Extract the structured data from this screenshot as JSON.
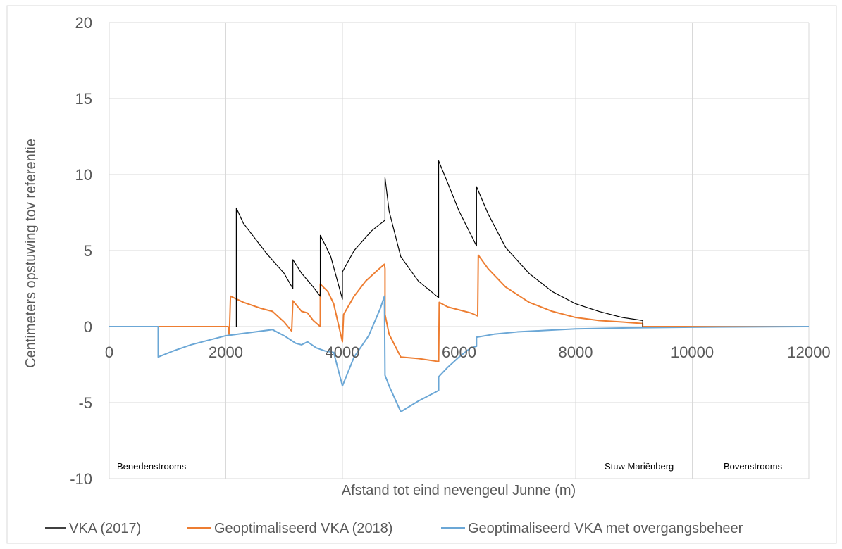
{
  "chart_data": {
    "type": "line",
    "xlabel": "Afstand tot eind nevengeul Junne (m)",
    "ylabel": "Centimeters opstuwing tov referentie",
    "xlim": [
      0,
      12000
    ],
    "ylim": [
      -10,
      20
    ],
    "x_ticks": [
      "0",
      "2000",
      "4000",
      "6000",
      "8000",
      "10000",
      "12000"
    ],
    "y_ticks": [
      "-10",
      "-5",
      "0",
      "5",
      "10",
      "15",
      "20"
    ],
    "grid": "vertical-and-horizontal",
    "legend_position": "bottom",
    "annotations": {
      "benedenstrooms": "Benedenstrooms",
      "stuw": "Stuw Mariënberg",
      "bovenstrooms": "Bovenstrooms"
    },
    "series": [
      {
        "name": "VKA (2017)",
        "color": "#000000",
        "points": [
          [
            2180,
            0
          ],
          [
            2180,
            7.8
          ],
          [
            2300,
            6.8
          ],
          [
            2500,
            5.8
          ],
          [
            2700,
            4.8
          ],
          [
            3000,
            3.5
          ],
          [
            3150,
            2.5
          ],
          [
            3150,
            4.4
          ],
          [
            3300,
            3.5
          ],
          [
            3500,
            2.6
          ],
          [
            3620,
            2.0
          ],
          [
            3620,
            6.0
          ],
          [
            3700,
            5.4
          ],
          [
            3800,
            4.6
          ],
          [
            4000,
            1.8
          ],
          [
            4000,
            3.6
          ],
          [
            4200,
            5.0
          ],
          [
            4500,
            6.3
          ],
          [
            4730,
            7.0
          ],
          [
            4730,
            9.8
          ],
          [
            4800,
            7.6
          ],
          [
            5000,
            4.6
          ],
          [
            5300,
            3.0
          ],
          [
            5650,
            1.9
          ],
          [
            5650,
            10.9
          ],
          [
            5800,
            9.5
          ],
          [
            6000,
            7.6
          ],
          [
            6300,
            5.3
          ],
          [
            6300,
            9.2
          ],
          [
            6500,
            7.4
          ],
          [
            6800,
            5.2
          ],
          [
            7200,
            3.5
          ],
          [
            7600,
            2.3
          ],
          [
            8000,
            1.5
          ],
          [
            8400,
            1.0
          ],
          [
            8800,
            0.6
          ],
          [
            9150,
            0.4
          ],
          [
            9150,
            0
          ]
        ]
      },
      {
        "name": "Geoptimaliseerd VKA (2018)",
        "color": "#ED7D31",
        "points": [
          [
            0,
            0
          ],
          [
            2040,
            0
          ],
          [
            2060,
            -0.6
          ],
          [
            2080,
            2.0
          ],
          [
            2300,
            1.6
          ],
          [
            2600,
            1.2
          ],
          [
            2800,
            1.0
          ],
          [
            3000,
            0.3
          ],
          [
            3130,
            -0.3
          ],
          [
            3150,
            1.7
          ],
          [
            3300,
            1.0
          ],
          [
            3400,
            0.9
          ],
          [
            3500,
            0.4
          ],
          [
            3620,
            0
          ],
          [
            3620,
            2.8
          ],
          [
            3750,
            2.3
          ],
          [
            3850,
            1.5
          ],
          [
            4000,
            -1.0
          ],
          [
            4020,
            0.8
          ],
          [
            4200,
            2.0
          ],
          [
            4400,
            3.0
          ],
          [
            4600,
            3.7
          ],
          [
            4720,
            4.1
          ],
          [
            4730,
            3.8
          ],
          [
            4730,
            0.8
          ],
          [
            4800,
            -0.5
          ],
          [
            5000,
            -2.0
          ],
          [
            5300,
            -2.1
          ],
          [
            5650,
            -2.3
          ],
          [
            5660,
            1.6
          ],
          [
            5800,
            1.3
          ],
          [
            6000,
            1.1
          ],
          [
            6200,
            0.9
          ],
          [
            6320,
            0.7
          ],
          [
            6330,
            4.7
          ],
          [
            6500,
            3.8
          ],
          [
            6800,
            2.6
          ],
          [
            7200,
            1.6
          ],
          [
            7600,
            1.0
          ],
          [
            8000,
            0.6
          ],
          [
            8400,
            0.4
          ],
          [
            8800,
            0.3
          ],
          [
            9150,
            0.2
          ],
          [
            9150,
            0
          ],
          [
            12000,
            0
          ]
        ]
      },
      {
        "name": "Geoptimaliseerd VKA met overgangsbeheer",
        "color": "#6BA7D6",
        "points": [
          [
            0,
            0
          ],
          [
            840,
            0
          ],
          [
            840,
            -2.0
          ],
          [
            1100,
            -1.6
          ],
          [
            1400,
            -1.2
          ],
          [
            1700,
            -0.9
          ],
          [
            2000,
            -0.6
          ],
          [
            2400,
            -0.4
          ],
          [
            2800,
            -0.2
          ],
          [
            3000,
            -0.6
          ],
          [
            3200,
            -1.1
          ],
          [
            3300,
            -1.2
          ],
          [
            3400,
            -1.0
          ],
          [
            3550,
            -1.4
          ],
          [
            3700,
            -1.6
          ],
          [
            3850,
            -1.7
          ],
          [
            4000,
            -3.9
          ],
          [
            4200,
            -2.0
          ],
          [
            4450,
            -0.6
          ],
          [
            4650,
            1.2
          ],
          [
            4720,
            2.0
          ],
          [
            4730,
            -3.2
          ],
          [
            4800,
            -3.9
          ],
          [
            5000,
            -5.6
          ],
          [
            5300,
            -4.9
          ],
          [
            5500,
            -4.5
          ],
          [
            5650,
            -4.2
          ],
          [
            5650,
            -3.3
          ],
          [
            5800,
            -2.7
          ],
          [
            6000,
            -2.0
          ],
          [
            6200,
            -1.4
          ],
          [
            6300,
            -1.3
          ],
          [
            6300,
            -0.7
          ],
          [
            6600,
            -0.5
          ],
          [
            7000,
            -0.35
          ],
          [
            7500,
            -0.25
          ],
          [
            8000,
            -0.15
          ],
          [
            9000,
            -0.08
          ],
          [
            10000,
            -0.04
          ],
          [
            12000,
            0
          ]
        ]
      }
    ]
  }
}
